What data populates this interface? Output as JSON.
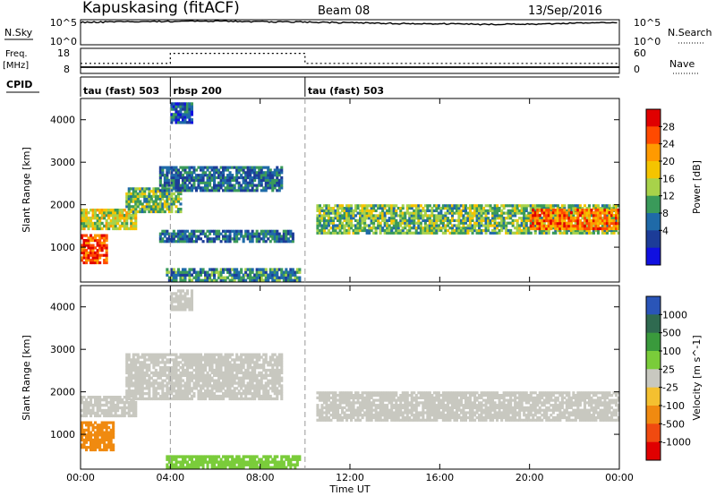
{
  "header": {
    "station": "Kapuskasing (fitACF)",
    "beam": "Beam 08",
    "date": "13/Sep/2016"
  },
  "noise_panel": {
    "left_label": "N.Sky",
    "left_ticks": [
      "10^5",
      "10^0"
    ],
    "right_ticks": [
      "10^5",
      "10^0"
    ],
    "right_label": "N.Search"
  },
  "freq_panel": {
    "left_label_line1": "Freq.",
    "left_label_line2": "[MHz]",
    "left_ticks": [
      "18",
      "8"
    ],
    "right_ticks": [
      "60",
      "0"
    ],
    "right_label": "Nave"
  },
  "cpid_panel": {
    "label": "CPID",
    "segments": [
      {
        "start_hour": 0,
        "name": "tau (fast) 503"
      },
      {
        "start_hour": 4,
        "name": "rbsp 200"
      },
      {
        "start_hour": 10,
        "name": "tau (fast) 503"
      }
    ]
  },
  "x_axis": {
    "label": "Time UT",
    "range_hours": [
      0,
      24
    ],
    "ticks": [
      "00:00",
      "04:00",
      "08:00",
      "12:00",
      "16:00",
      "20:00",
      "00:00"
    ]
  },
  "power_colorbar": {
    "label": "Power [dB]",
    "ticks": [
      "28",
      "24",
      "20",
      "16",
      "12",
      "8",
      "4"
    ],
    "colors": [
      "#e00000",
      "#ff4a00",
      "#ff9a00",
      "#f4c400",
      "#a8d24a",
      "#3a9a5a",
      "#1f6aa8",
      "#1c3c98",
      "#1010e0"
    ]
  },
  "velocity_colorbar": {
    "label": "Velocity [m s^-1]",
    "ticks": [
      "1000",
      "500",
      "100",
      "25",
      "-25",
      "-100",
      "-500",
      "-1000"
    ],
    "colors": [
      "#2a55b8",
      "#2f6a50",
      "#3a9a3c",
      "#7acc3a",
      "#c8c8c0",
      "#f4c030",
      "#f08a10",
      "#f04a10",
      "#e00000"
    ]
  },
  "chart_data": [
    {
      "type": "line",
      "title": "Kapuskasing (fitACF)",
      "subtitle": "Beam 08",
      "xlabel": "Time UT",
      "ylabel": "N.Sky",
      "yscale": "log",
      "x_range_hours": [
        0,
        24
      ],
      "y_range": [
        1,
        100000
      ],
      "series": [
        {
          "x": [
            0,
            2,
            4,
            6,
            8,
            10,
            12,
            14,
            16,
            18,
            20,
            22,
            24
          ],
          "y": [
            30000,
            40000,
            45000,
            50000,
            42000,
            35000,
            25000,
            18000,
            15000,
            12000,
            14000,
            20000,
            30000
          ]
        }
      ]
    },
    {
      "type": "line",
      "ylabel": "Freq. [MHz]",
      "x_range_hours": [
        0,
        24
      ],
      "y_range": [
        8,
        18
      ],
      "right_axis": {
        "label": "Nave",
        "range": [
          0,
          60
        ]
      },
      "series": [
        {
          "x": [
            0,
            4,
            4,
            10,
            10,
            24
          ],
          "y": [
            10.5,
            10.5,
            10.5,
            10.5,
            10.5,
            10.5
          ]
        },
        {
          "x": [
            0,
            4,
            4,
            10,
            10,
            24
          ],
          "y": [
            12,
            12,
            16,
            16,
            12,
            12
          ]
        }
      ]
    },
    {
      "type": "heatmap",
      "ylabel": "Slant Range [km]",
      "xlabel": "Time UT",
      "x_range_hours": [
        0,
        24
      ],
      "y_range_km": [
        180,
        4500
      ],
      "y_ticks": [
        1000,
        2000,
        3000,
        4000
      ],
      "colorbar": {
        "label": "Power [dB]",
        "range": [
          0,
          32
        ]
      },
      "echo_regions": [
        {
          "t0": 0.0,
          "t1": 1.2,
          "r0": 600,
          "r1": 1300,
          "value": 28
        },
        {
          "t0": 0.0,
          "t1": 2.5,
          "r0": 1400,
          "r1": 1900,
          "value": 18
        },
        {
          "t0": 2.0,
          "t1": 4.5,
          "r0": 1800,
          "r1": 2400,
          "value": 14
        },
        {
          "t0": 3.5,
          "t1": 9.0,
          "r0": 2300,
          "r1": 2900,
          "value": 8
        },
        {
          "t0": 4.0,
          "t1": 5.0,
          "r0": 3900,
          "r1": 4400,
          "value": 6
        },
        {
          "t0": 3.8,
          "t1": 9.8,
          "r0": 180,
          "r1": 500,
          "value": 10
        },
        {
          "t0": 3.5,
          "t1": 9.5,
          "r0": 1100,
          "r1": 1400,
          "value": 8
        },
        {
          "t0": 10.5,
          "t1": 24.0,
          "r0": 1300,
          "r1": 2000,
          "value": 14
        },
        {
          "t0": 20.0,
          "t1": 24.0,
          "r0": 1400,
          "r1": 1900,
          "value": 26
        }
      ]
    },
    {
      "type": "heatmap",
      "ylabel": "Slant Range [km]",
      "xlabel": "Time UT",
      "x_range_hours": [
        0,
        24
      ],
      "y_range_km": [
        180,
        4500
      ],
      "y_ticks": [
        1000,
        2000,
        3000,
        4000
      ],
      "colorbar": {
        "label": "Velocity [m s^-1]",
        "ticks": [
          1000,
          500,
          100,
          25,
          -25,
          -100,
          -500,
          -1000
        ]
      },
      "echo_regions": [
        {
          "t0": 0.0,
          "t1": 1.5,
          "r0": 600,
          "r1": 1300,
          "value": -150
        },
        {
          "t0": 0.0,
          "t1": 2.5,
          "r0": 1400,
          "r1": 1900,
          "value": 0
        },
        {
          "t0": 2.0,
          "t1": 9.0,
          "r0": 1800,
          "r1": 2900,
          "value": 0
        },
        {
          "t0": 4.0,
          "t1": 5.0,
          "r0": 3900,
          "r1": 4400,
          "value": 0
        },
        {
          "t0": 3.8,
          "t1": 9.8,
          "r0": 180,
          "r1": 500,
          "value": 60
        },
        {
          "t0": 10.5,
          "t1": 24.0,
          "r0": 1300,
          "r1": 2000,
          "value": 0
        }
      ]
    }
  ]
}
